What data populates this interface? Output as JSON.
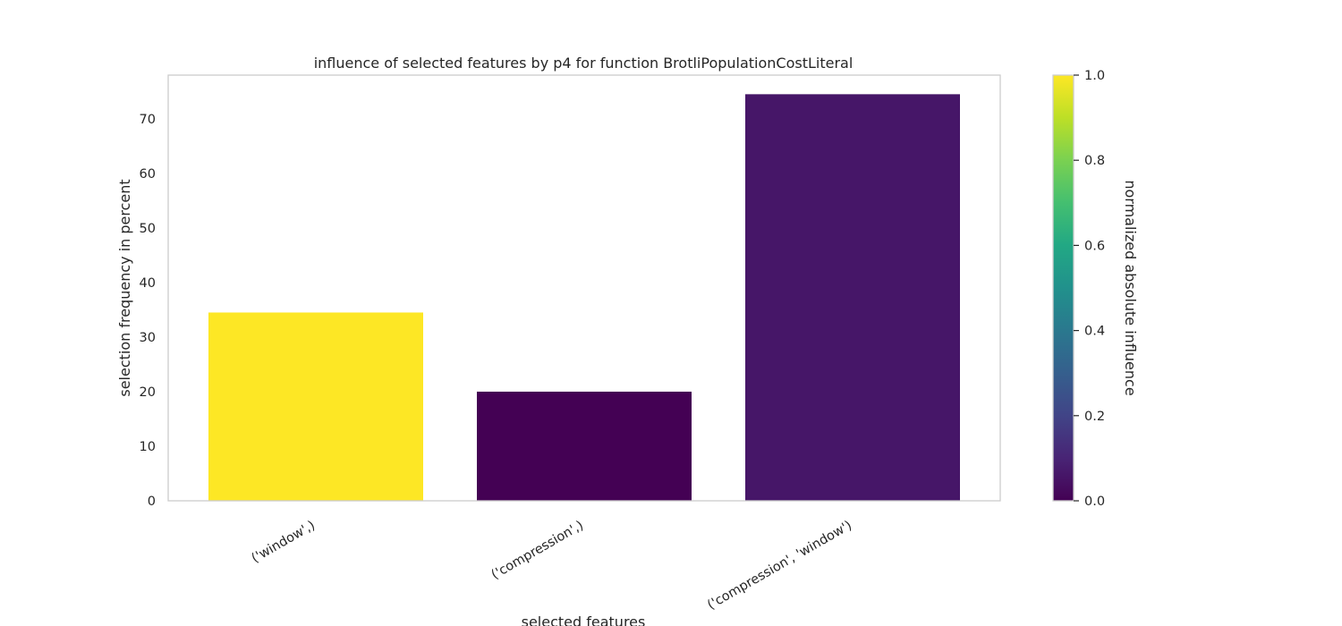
{
  "chart_data": {
    "type": "bar",
    "title": "influence of selected features by p4 for function BrotliPopulationCostLiteral",
    "xlabel": "selected features",
    "ylabel": "selection frequency in percent",
    "categories": [
      "('window',)",
      "('compression',)",
      "('compression', 'window')"
    ],
    "values": [
      34.5,
      20.0,
      74.5
    ],
    "influence": [
      1.0,
      0.0,
      0.06
    ],
    "ylim": [
      0,
      78
    ],
    "yticks": [
      0,
      10,
      20,
      30,
      40,
      50,
      60,
      70
    ],
    "grid": false,
    "colorbar": {
      "label": "normalized absolute influence",
      "colormap": "viridis",
      "range": [
        0.0,
        1.0
      ],
      "ticks": [
        "0.0",
        "0.2",
        "0.4",
        "0.6",
        "0.8",
        "1.0"
      ]
    },
    "colors": {
      "frame": "#cccccc",
      "text": "#262626"
    }
  }
}
